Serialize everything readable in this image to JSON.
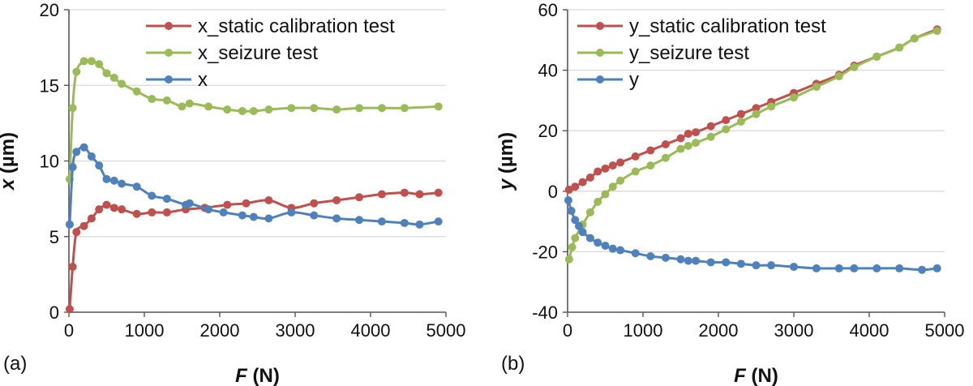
{
  "chart_data": [
    {
      "type": "line",
      "panel_label": "(a)",
      "xlabel_var": "F",
      "xlabel_unit": " (N)",
      "ylabel_var": "x",
      "ylabel_unit": " (µm)",
      "xlim": [
        0,
        5000
      ],
      "ylim": [
        0,
        20
      ],
      "xticks": [
        0,
        1000,
        2000,
        3000,
        4000,
        5000
      ],
      "yticks": [
        0,
        5,
        10,
        15,
        20
      ],
      "grid": true,
      "legend_position": "top-right",
      "series": [
        {
          "name": "x_static calibration test",
          "color": "#c0504d",
          "x": [
            10,
            50,
            100,
            200,
            300,
            400,
            500,
            600,
            700,
            900,
            1100,
            1300,
            1550,
            1800,
            2100,
            2350,
            2650,
            2950,
            3250,
            3550,
            3850,
            4150,
            4450,
            4650,
            4900
          ],
          "y": [
            0.2,
            3.0,
            5.3,
            5.7,
            6.2,
            6.8,
            7.1,
            6.9,
            6.8,
            6.5,
            6.6,
            6.6,
            6.8,
            6.9,
            7.1,
            7.2,
            7.4,
            6.9,
            7.2,
            7.4,
            7.6,
            7.8,
            7.9,
            7.8,
            7.9
          ]
        },
        {
          "name": "x_seizure test",
          "color": "#9bbb59",
          "x": [
            10,
            50,
            100,
            200,
            300,
            400,
            500,
            600,
            700,
            900,
            1100,
            1300,
            1500,
            1600,
            1850,
            2100,
            2300,
            2450,
            2650,
            2950,
            3250,
            3550,
            3850,
            4150,
            4450,
            4900
          ],
          "y": [
            8.8,
            13.5,
            15.9,
            16.6,
            16.6,
            16.4,
            15.8,
            15.5,
            15.1,
            14.6,
            14.1,
            14.0,
            13.6,
            13.8,
            13.6,
            13.4,
            13.3,
            13.3,
            13.4,
            13.5,
            13.5,
            13.4,
            13.5,
            13.5,
            13.5,
            13.6
          ]
        },
        {
          "name": "x",
          "color": "#4f81bd",
          "x": [
            10,
            50,
            100,
            200,
            300,
            400,
            500,
            600,
            700,
            900,
            1100,
            1300,
            1550,
            1600,
            1850,
            2050,
            2300,
            2450,
            2650,
            2950,
            3250,
            3550,
            3850,
            4150,
            4450,
            4650,
            4900
          ],
          "y": [
            5.8,
            9.6,
            10.6,
            10.9,
            10.3,
            9.7,
            8.8,
            8.7,
            8.5,
            8.3,
            7.7,
            7.5,
            7.1,
            7.2,
            6.8,
            6.6,
            6.4,
            6.3,
            6.2,
            6.6,
            6.4,
            6.2,
            6.1,
            6.0,
            5.9,
            5.8,
            6.0
          ]
        }
      ]
    },
    {
      "type": "line",
      "panel_label": "(b)",
      "xlabel_var": "F",
      "xlabel_unit": " (N)",
      "ylabel_var": "y",
      "ylabel_unit": " (µm)",
      "xlim": [
        0,
        5000
      ],
      "ylim": [
        -40,
        60
      ],
      "xticks": [
        0,
        1000,
        2000,
        3000,
        4000,
        5000
      ],
      "yticks": [
        -40,
        -20,
        0,
        20,
        40,
        60
      ],
      "grid": true,
      "legend_position": "top-left",
      "series": [
        {
          "name": "y_static calibration test",
          "color": "#c0504d",
          "x": [
            20,
            100,
            200,
            300,
            400,
            500,
            600,
            700,
            900,
            1100,
            1300,
            1500,
            1600,
            1700,
            1900,
            2100,
            2300,
            2500,
            2700,
            3000,
            3300,
            3600,
            3800,
            4100,
            4400,
            4600,
            4900
          ],
          "y": [
            0.5,
            1.5,
            3.0,
            4.5,
            6.5,
            7.5,
            8.5,
            9.5,
            11.5,
            13.5,
            15.5,
            17.5,
            19.0,
            19.5,
            21.5,
            23.5,
            25.5,
            27.5,
            29.5,
            32.5,
            35.5,
            38.5,
            41.5,
            44.5,
            47.5,
            50.5,
            53.5
          ]
        },
        {
          "name": "y_seizure test",
          "color": "#9bbb59",
          "x": [
            20,
            60,
            100,
            200,
            300,
            400,
            500,
            600,
            700,
            900,
            1100,
            1300,
            1500,
            1600,
            1700,
            1900,
            2100,
            2300,
            2500,
            2700,
            3000,
            3300,
            3600,
            3800,
            4100,
            4400,
            4600,
            4900
          ],
          "y": [
            -22.5,
            -18.5,
            -15.5,
            -11.0,
            -7.0,
            -3.5,
            -1.0,
            1.5,
            3.5,
            6.5,
            8.5,
            11.0,
            14.0,
            15.0,
            16.0,
            18.0,
            20.5,
            23.0,
            25.5,
            28.0,
            31.0,
            34.5,
            38.0,
            41.0,
            44.5,
            47.5,
            50.5,
            53.0
          ]
        },
        {
          "name": "y",
          "color": "#4f81bd",
          "x": [
            10,
            50,
            100,
            150,
            200,
            300,
            400,
            500,
            600,
            700,
            900,
            1100,
            1300,
            1500,
            1600,
            1700,
            1900,
            2100,
            2300,
            2500,
            2700,
            3000,
            3300,
            3600,
            3800,
            4100,
            4400,
            4700,
            4900
          ],
          "y": [
            -3.0,
            -6.5,
            -9.5,
            -11.5,
            -13.5,
            -15.5,
            -17.0,
            -18.0,
            -19.0,
            -19.5,
            -20.5,
            -21.5,
            -22.0,
            -22.5,
            -23.0,
            -23.0,
            -23.5,
            -23.5,
            -24.0,
            -24.5,
            -24.5,
            -25.0,
            -25.5,
            -25.5,
            -25.5,
            -25.5,
            -25.5,
            -26.0,
            -25.5
          ]
        }
      ]
    }
  ]
}
